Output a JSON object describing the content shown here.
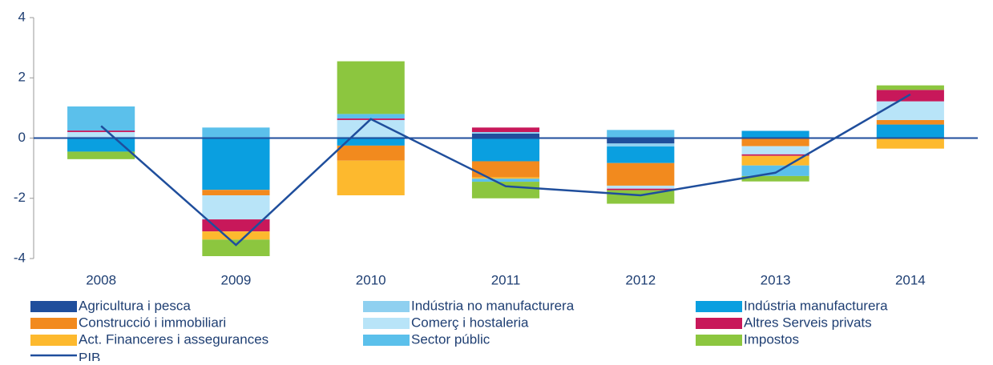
{
  "chart_data": {
    "type": "bar",
    "categories": [
      "2008",
      "2009",
      "2010",
      "2011",
      "2012",
      "2013",
      "2014"
    ],
    "series": [
      {
        "name": "Agricultura i pesca",
        "color": "#1f4e9c",
        "values": [
          0,
          0,
          0,
          0.15,
          -0.18,
          0,
          0
        ]
      },
      {
        "name": "Indústria no manufacturera",
        "color": "#8fd0f0",
        "values": [
          0.05,
          0,
          0.05,
          0.05,
          -0.1,
          0,
          0
        ]
      },
      {
        "name": "Indústria manufacturera",
        "color": "#0a9fe0",
        "values": [
          -0.45,
          -1.72,
          -0.25,
          -0.77,
          -0.55,
          0.24,
          0.45
        ]
      },
      {
        "name": "Construcció i immobiliari",
        "color": "#f28a1e",
        "values": [
          0,
          -0.18,
          -0.5,
          -0.53,
          -0.75,
          -0.27,
          0.15
        ]
      },
      {
        "name": "Comerç i hostaleria",
        "color": "#b8e4f8",
        "values": [
          0.15,
          -0.8,
          0.55,
          0,
          -0.1,
          -0.27,
          0.62
        ]
      },
      {
        "name": "Altres Serveis privats",
        "color": "#c8185a",
        "values": [
          0.05,
          -0.4,
          0.05,
          0.15,
          -0.05,
          -0.05,
          0.38
        ]
      },
      {
        "name": "Act. Financeres i assegurances",
        "color": "#fdb92e",
        "values": [
          0,
          -0.27,
          -1.15,
          -0.05,
          0,
          -0.32,
          -0.35
        ]
      },
      {
        "name": "Sector públic",
        "color": "#5bc0eb",
        "values": [
          0.8,
          0.35,
          0.15,
          -0.1,
          0.27,
          -0.35,
          0
        ]
      },
      {
        "name": "Impostos",
        "color": "#8cc63f",
        "values": [
          -0.25,
          -0.55,
          1.75,
          -0.55,
          -0.45,
          -0.18,
          0.15
        ]
      }
    ],
    "line": {
      "name": "PIB",
      "color": "#1f4e9c",
      "values": [
        0.4,
        -3.55,
        0.63,
        -1.6,
        -1.9,
        -1.15,
        1.45
      ]
    },
    "ylim": [
      -4,
      4
    ],
    "yticks": [
      -4,
      -2,
      0,
      2,
      4
    ]
  }
}
